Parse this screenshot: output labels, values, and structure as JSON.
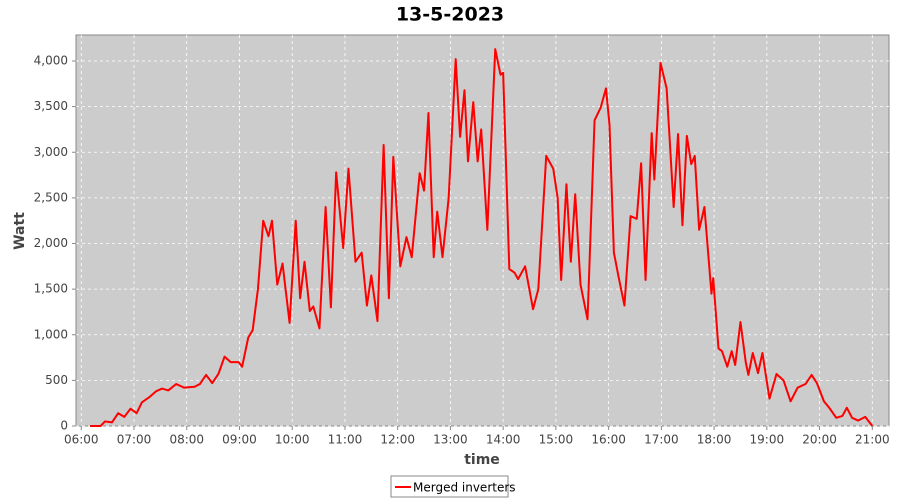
{
  "chart_data": {
    "type": "line",
    "title": "13-5-2023",
    "xlabel": "time",
    "ylabel": "Watt",
    "x": [
      "06:10",
      "06:22",
      "06:27",
      "06:35",
      "06:42",
      "06:49",
      "06:56",
      "07:03",
      "07:09",
      "07:18",
      "07:25",
      "07:32",
      "07:39",
      "07:48",
      "07:57",
      "08:09",
      "08:15",
      "08:22",
      "08:29",
      "08:36",
      "08:43",
      "08:50",
      "08:59",
      "09:03",
      "09:10",
      "09:15",
      "09:21",
      "09:27",
      "09:33",
      "09:37",
      "09:43",
      "09:49",
      "09:57",
      "10:04",
      "10:09",
      "10:14",
      "10:20",
      "10:24",
      "10:31",
      "10:38",
      "10:44",
      "10:50",
      "10:58",
      "11:04",
      "11:12",
      "11:19",
      "11:25",
      "11:30",
      "11:37",
      "11:44",
      "11:50",
      "11:55",
      "12:03",
      "12:10",
      "12:16",
      "12:25",
      "12:30",
      "12:35",
      "12:41",
      "12:45",
      "12:51",
      "12:58",
      "13:06",
      "13:11",
      "13:16",
      "13:20",
      "13:26",
      "13:31",
      "13:35",
      "13:42",
      "13:51",
      "13:57",
      "14:00",
      "14:07",
      "14:13",
      "14:17",
      "14:25",
      "14:34",
      "14:40",
      "14:49",
      "14:57",
      "15:02",
      "15:06",
      "15:12",
      "15:17",
      "15:22",
      "15:28",
      "15:36",
      "15:44",
      "15:51",
      "15:57",
      "16:01",
      "16:06",
      "16:11",
      "16:18",
      "16:25",
      "16:32",
      "16:37",
      "16:42",
      "16:49",
      "16:52",
      "16:59",
      "17:06",
      "17:14",
      "17:19",
      "17:24",
      "17:29",
      "17:34",
      "17:38",
      "17:43",
      "17:49",
      "17:57",
      "17:59",
      "18:05",
      "18:09",
      "18:15",
      "18:20",
      "18:24",
      "18:30",
      "18:36",
      "18:39",
      "18:44",
      "18:50",
      "18:55",
      "19:03",
      "19:11",
      "19:19",
      "19:27",
      "19:35",
      "19:44",
      "19:51",
      "19:57",
      "20:05",
      "20:11",
      "20:19",
      "20:26",
      "20:31",
      "20:37",
      "20:44",
      "20:52",
      "21:00"
    ],
    "series": [
      {
        "name": "Merged inverters",
        "color": "#ff0000",
        "values": [
          0,
          0,
          50,
          40,
          140,
          100,
          190,
          140,
          260,
          320,
          380,
          410,
          390,
          460,
          420,
          430,
          460,
          560,
          470,
          570,
          760,
          700,
          700,
          650,
          970,
          1050,
          1500,
          2250,
          2080,
          2250,
          1550,
          1780,
          1130,
          2250,
          1400,
          1800,
          1260,
          1310,
          1070,
          2400,
          1300,
          2780,
          1950,
          2820,
          1800,
          1900,
          1320,
          1650,
          1150,
          3080,
          1400,
          2950,
          1750,
          2070,
          1850,
          2770,
          2580,
          3430,
          1850,
          2350,
          1850,
          2500,
          4020,
          3170,
          3680,
          2900,
          3550,
          2900,
          3250,
          2150,
          4130,
          3850,
          3870,
          1720,
          1680,
          1610,
          1750,
          1280,
          1500,
          2960,
          2820,
          2500,
          1600,
          2650,
          1800,
          2540,
          1550,
          1170,
          3350,
          3490,
          3700,
          3300,
          1900,
          1650,
          1320,
          2300,
          2270,
          2880,
          1600,
          3210,
          2700,
          3980,
          3700,
          2400,
          3200,
          2200,
          3180,
          2870,
          2960,
          2150,
          2400,
          1450,
          1620,
          850,
          820,
          650,
          820,
          670,
          1140,
          700,
          560,
          800,
          580,
          800,
          300,
          570,
          500,
          270,
          420,
          460,
          560,
          470,
          270,
          200,
          90,
          110,
          200,
          90,
          60,
          100,
          0
        ]
      }
    ],
    "xlim": [
      "05:54",
      "21:19"
    ],
    "xticks": [
      "06:00",
      "07:00",
      "08:00",
      "09:00",
      "10:00",
      "11:00",
      "12:00",
      "13:00",
      "14:00",
      "15:00",
      "16:00",
      "17:00",
      "18:00",
      "19:00",
      "20:00",
      "21:00"
    ],
    "ylim": [
      0,
      4285
    ],
    "yticks": [
      0,
      500,
      {
        "value": 1000,
        "label": "1,000"
      },
      {
        "value": 1500,
        "label": "1,500"
      },
      {
        "value": 2000,
        "label": "2,000"
      },
      {
        "value": 2500,
        "label": "2,500"
      },
      {
        "value": 3000,
        "label": "3,000"
      },
      {
        "value": 3500,
        "label": "3,500"
      },
      {
        "value": 4000,
        "label": "4,000"
      }
    ],
    "grid": true,
    "legend": "bottom"
  }
}
